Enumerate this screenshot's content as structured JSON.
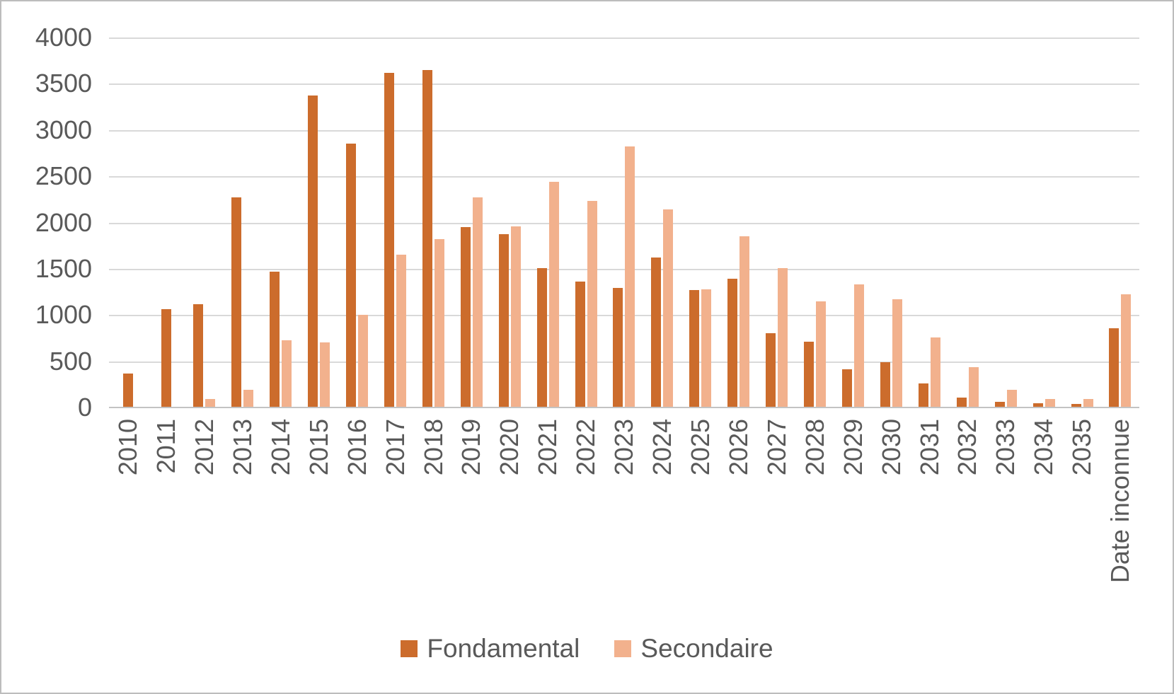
{
  "chart_data": {
    "type": "bar",
    "title": "",
    "xlabel": "",
    "ylabel": "",
    "categories": [
      "2010",
      "2011",
      "2012",
      "2013",
      "2014",
      "2015",
      "2016",
      "2017",
      "2018",
      "2019",
      "2020",
      "2021",
      "2022",
      "2023",
      "2024",
      "2025",
      "2026",
      "2027",
      "2028",
      "2029",
      "2030",
      "2031",
      "2032",
      "2033",
      "2034",
      "2035",
      "Date inconnue"
    ],
    "series": [
      {
        "name": "Fondamental",
        "color": "#CC6C2C",
        "values": [
          370,
          1060,
          1120,
          2270,
          1470,
          3370,
          2850,
          3620,
          3650,
          1950,
          1870,
          1510,
          1360,
          1290,
          1620,
          1270,
          1390,
          800,
          710,
          410,
          490,
          260,
          110,
          65,
          45,
          40,
          860
        ]
      },
      {
        "name": "Secondaire",
        "color": "#F2B18D",
        "values": [
          0,
          0,
          95,
          190,
          725,
          700,
          1000,
          1650,
          1820,
          2270,
          1955,
          2440,
          2235,
          2820,
          2140,
          1280,
          1850,
          1510,
          1145,
          1330,
          1170,
          760,
          435,
          195,
          95,
          95,
          1225
        ]
      }
    ],
    "ylim": [
      0,
      4000
    ],
    "ytick_step": 500,
    "yticks": [
      0,
      500,
      1000,
      1500,
      2000,
      2500,
      3000,
      3500,
      4000
    ],
    "grid": "horizontal",
    "gridline_color": "#D9D9D9",
    "axis_line_color": "#C3C3C3",
    "axis_text_color": "#595959",
    "legend_position": "bottom",
    "x_label_rotation": "vertical"
  }
}
